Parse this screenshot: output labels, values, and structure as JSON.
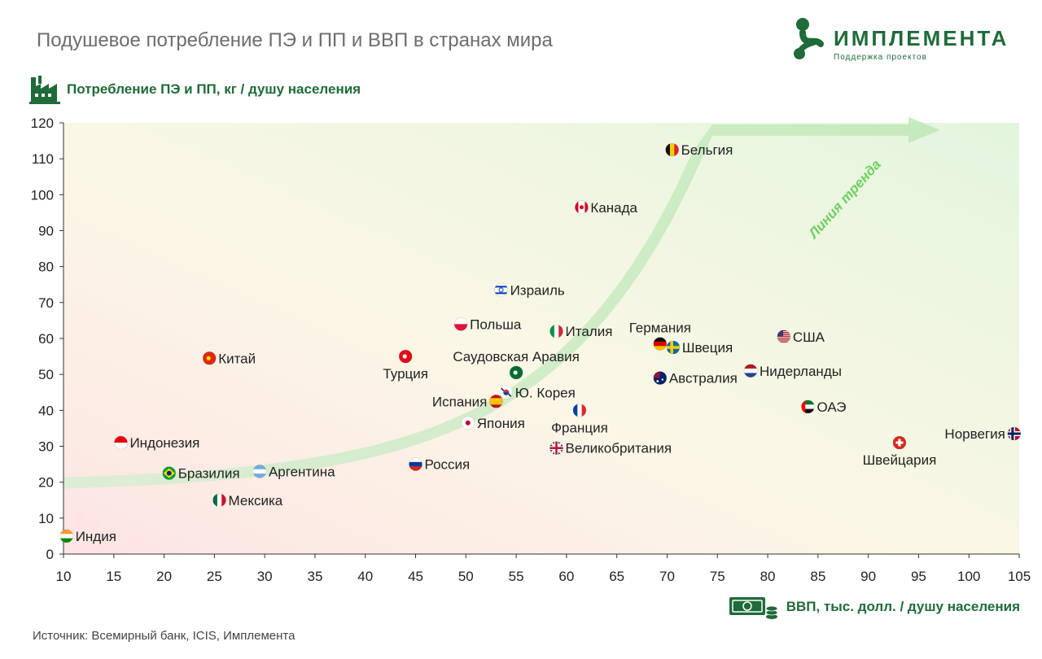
{
  "header": {
    "title": "Подушевое потребление ПЭ и ПП и ВВП в странах мира",
    "brand_name": "ИМПЛЕМЕНТА",
    "brand_tagline": "Поддержка проектов"
  },
  "footer": {
    "source": "Источник: Всемирный банк, ICIS, Имплемента"
  },
  "colors": {
    "brand_green": "#1f6b3a",
    "trend_green": "#b9e6b0",
    "trend_label": "#6fcf5f"
  },
  "chart_data": {
    "type": "scatter",
    "ylabel": "Потребление ПЭ и ПП, кг / душу населения",
    "xlabel": "ВВП, тыс. долл. / душу населения",
    "xlim": [
      10,
      105
    ],
    "ylim": [
      0,
      120
    ],
    "xticks": [
      10,
      15,
      20,
      25,
      30,
      35,
      40,
      45,
      50,
      55,
      60,
      65,
      70,
      75,
      80,
      85,
      90,
      95,
      100,
      105
    ],
    "yticks": [
      0,
      10,
      20,
      30,
      40,
      50,
      60,
      70,
      80,
      90,
      100,
      110,
      120
    ],
    "grid": "none",
    "trend_label": "Линия тренда",
    "points": [
      {
        "name": "Бельгия",
        "x": 70.5,
        "y": 112.5,
        "flag": "belgium",
        "label_pos": "right"
      },
      {
        "name": "Канада",
        "x": 61.5,
        "y": 96.5,
        "flag": "canada",
        "label_pos": "right"
      },
      {
        "name": "Израиль",
        "x": 53.5,
        "y": 73.5,
        "flag": "israel",
        "label_pos": "right"
      },
      {
        "name": "Польша",
        "x": 49.5,
        "y": 64,
        "flag": "poland",
        "label_pos": "right"
      },
      {
        "name": "Италия",
        "x": 59,
        "y": 62,
        "flag": "italy",
        "label_pos": "right"
      },
      {
        "name": "Германия",
        "x": 69.3,
        "y": 58.5,
        "flag": "germany",
        "label_pos": "above"
      },
      {
        "name": "Швеция",
        "x": 70.6,
        "y": 57.5,
        "flag": "sweden",
        "label_pos": "right"
      },
      {
        "name": "США",
        "x": 81.6,
        "y": 60.5,
        "flag": "usa",
        "label_pos": "right"
      },
      {
        "name": "Китай",
        "x": 24.5,
        "y": 54.5,
        "flag": "china",
        "label_pos": "right"
      },
      {
        "name": "Турция",
        "x": 44,
        "y": 55,
        "flag": "turkey",
        "label_pos": "below"
      },
      {
        "name": "Саудовская Аравия",
        "x": 55,
        "y": 50.5,
        "flag": "saudi",
        "label_pos": "above"
      },
      {
        "name": "Нидерланды",
        "x": 78.3,
        "y": 51,
        "flag": "netherlands",
        "label_pos": "right"
      },
      {
        "name": "Австралия",
        "x": 69.3,
        "y": 49,
        "flag": "australia",
        "label_pos": "right"
      },
      {
        "name": "Ю. Корея",
        "x": 54,
        "y": 45,
        "flag": "korea",
        "label_pos": "right"
      },
      {
        "name": "Испания",
        "x": 53,
        "y": 42.5,
        "flag": "spain",
        "label_pos": "left"
      },
      {
        "name": "Франция",
        "x": 61.3,
        "y": 40,
        "flag": "france",
        "label_pos": "below"
      },
      {
        "name": "ОАЭ",
        "x": 84,
        "y": 41,
        "flag": "uae",
        "label_pos": "right"
      },
      {
        "name": "Япония",
        "x": 50.2,
        "y": 36.5,
        "flag": "japan",
        "label_pos": "right"
      },
      {
        "name": "Норвегия",
        "x": 104.5,
        "y": 33.5,
        "flag": "norway",
        "label_pos": "left"
      },
      {
        "name": "Индонезия",
        "x": 15.7,
        "y": 31,
        "flag": "indonesia",
        "label_pos": "right"
      },
      {
        "name": "Швейцария",
        "x": 93.1,
        "y": 31,
        "flag": "switzerland",
        "label_pos": "below"
      },
      {
        "name": "Великобритания",
        "x": 59,
        "y": 29.5,
        "flag": "uk",
        "label_pos": "right"
      },
      {
        "name": "Россия",
        "x": 45,
        "y": 25,
        "flag": "russia",
        "label_pos": "right"
      },
      {
        "name": "Бразилия",
        "x": 20.5,
        "y": 22.5,
        "flag": "brazil",
        "label_pos": "right"
      },
      {
        "name": "Аргентина",
        "x": 29.5,
        "y": 23,
        "flag": "argentina",
        "label_pos": "right"
      },
      {
        "name": "Мексика",
        "x": 25.5,
        "y": 15,
        "flag": "mexico",
        "label_pos": "right"
      },
      {
        "name": "Индия",
        "x": 10.3,
        "y": 5,
        "flag": "india",
        "label_pos": "right"
      }
    ]
  }
}
